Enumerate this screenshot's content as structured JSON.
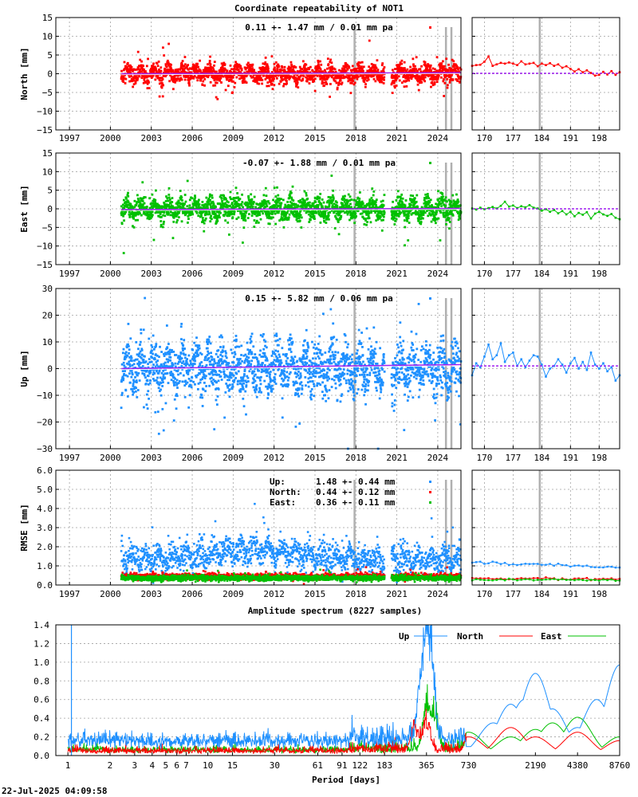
{
  "timestamp": "22-Jul-2025 04:09:58",
  "colors": {
    "north": "#ff0000",
    "east": "#00c000",
    "up": "#1e90ff",
    "trend": "#a020f0",
    "marker": "#b0b0b0"
  },
  "chart_data": [
    {
      "type": "scatter",
      "name": "repeat-north",
      "title": "Coordinate repeatability of NOT1",
      "ylabel": "North [mm]",
      "annotation": "0.11 +- 1.47 mm /  0.01 mm pa",
      "ylim": [
        -15,
        15
      ],
      "yticks": [
        "15",
        "10",
        "5",
        "0",
        "−5",
        "−10",
        "−15"
      ],
      "xlim": [
        1996.0,
        2025.7
      ],
      "xticks": [
        "1997",
        "2000",
        "2003",
        "2006",
        "2009",
        "2012",
        "2015",
        "2018",
        "2021",
        "2024"
      ],
      "data_start": 2000.8,
      "data_end": 2025.7,
      "gap": [
        2020.1,
        2020.6
      ],
      "sigma": 1.47,
      "trend": [
        [
          2000.8,
          0.0
        ],
        [
          2025.7,
          0.3
        ]
      ],
      "marker_years": [
        2017.9,
        2024.6,
        2025.0
      ],
      "zoom": {
        "xlim": [
          167,
          203
        ],
        "xticks": [
          "170",
          "177",
          "184",
          "191",
          "198"
        ],
        "marker_day": 183.5,
        "series": [
          [
            167,
            2.1
          ],
          [
            168,
            2.3
          ],
          [
            169,
            2.4
          ],
          [
            170,
            3.2
          ],
          [
            171,
            4.6
          ],
          [
            172,
            2.1
          ],
          [
            173,
            2.5
          ],
          [
            174,
            2.9
          ],
          [
            175,
            2.7
          ],
          [
            176,
            3.0
          ],
          [
            177,
            2.7
          ],
          [
            178,
            2.3
          ],
          [
            179,
            3.3
          ],
          [
            180,
            2.5
          ],
          [
            181,
            2.7
          ],
          [
            182,
            2.9
          ],
          [
            183,
            2.0
          ],
          [
            184,
            2.7
          ],
          [
            185,
            2.3
          ],
          [
            186,
            2.8
          ],
          [
            187,
            2.1
          ],
          [
            188,
            2.5
          ],
          [
            189,
            1.6
          ],
          [
            190,
            2.0
          ],
          [
            191,
            1.3
          ],
          [
            192,
            0.6
          ],
          [
            193,
            1.2
          ],
          [
            194,
            0.4
          ],
          [
            195,
            0.9
          ],
          [
            196,
            0.2
          ],
          [
            197,
            -0.5
          ],
          [
            198,
            -0.3
          ],
          [
            199,
            0.5
          ],
          [
            200,
            -0.2
          ],
          [
            201,
            0.7
          ],
          [
            202,
            -0.3
          ],
          [
            203,
            0.4
          ]
        ],
        "trend": [
          [
            167,
            0.1
          ],
          [
            203,
            0.1
          ]
        ]
      }
    },
    {
      "type": "scatter",
      "name": "repeat-east",
      "ylabel": "East [mm]",
      "annotation": "-0.07 +- 1.88 mm /  0.01 mm pa",
      "ylim": [
        -15,
        15
      ],
      "yticks": [
        "15",
        "10",
        "5",
        "0",
        "−5",
        "−10",
        "−15"
      ],
      "xlim": [
        1996.0,
        2025.7
      ],
      "xticks": [
        "1997",
        "2000",
        "2003",
        "2006",
        "2009",
        "2012",
        "2015",
        "2018",
        "2021",
        "2024"
      ],
      "data_start": 2000.8,
      "data_end": 2025.7,
      "gap": [
        2020.1,
        2020.6
      ],
      "sigma": 1.88,
      "trend": [
        [
          2000.8,
          -0.2
        ],
        [
          2025.7,
          0.1
        ]
      ],
      "marker_years": [
        2017.9,
        2024.6,
        2025.0
      ],
      "zoom": {
        "xlim": [
          167,
          203
        ],
        "xticks": [
          "170",
          "177",
          "184",
          "191",
          "198"
        ],
        "marker_day": 183.5,
        "series": [
          [
            167,
            0.1
          ],
          [
            168,
            -0.2
          ],
          [
            169,
            0.3
          ],
          [
            170,
            -0.1
          ],
          [
            171,
            0.2
          ],
          [
            172,
            0.5
          ],
          [
            173,
            0.1
          ],
          [
            174,
            0.8
          ],
          [
            175,
            1.9
          ],
          [
            176,
            0.6
          ],
          [
            177,
            0.9
          ],
          [
            178,
            0.2
          ],
          [
            179,
            0.7
          ],
          [
            180,
            0.4
          ],
          [
            181,
            1.0
          ],
          [
            182,
            0.3
          ],
          [
            183,
            0.1
          ],
          [
            184,
            -0.5
          ],
          [
            185,
            -0.1
          ],
          [
            186,
            -0.8
          ],
          [
            187,
            -0.3
          ],
          [
            188,
            -1.2
          ],
          [
            189,
            -0.6
          ],
          [
            190,
            -1.5
          ],
          [
            191,
            -0.8
          ],
          [
            192,
            -2.0
          ],
          [
            193,
            -1.1
          ],
          [
            194,
            -1.6
          ],
          [
            195,
            -0.9
          ],
          [
            196,
            -2.6
          ],
          [
            197,
            -1.3
          ],
          [
            198,
            -0.8
          ],
          [
            199,
            -1.5
          ],
          [
            200,
            -1.9
          ],
          [
            201,
            -1.4
          ],
          [
            202,
            -2.4
          ],
          [
            203,
            -2.8
          ]
        ],
        "trend": [
          [
            167,
            0.0
          ],
          [
            203,
            0.0
          ]
        ]
      }
    },
    {
      "type": "scatter",
      "name": "repeat-up",
      "ylabel": "Up [mm]",
      "annotation": "0.15 +- 5.82 mm /  0.06 mm pa",
      "ylim": [
        -30,
        30
      ],
      "yticks": [
        "30",
        "20",
        "10",
        "0",
        "−10",
        "−20",
        "−30"
      ],
      "xlim": [
        1996.0,
        2025.7
      ],
      "xticks": [
        "1997",
        "2000",
        "2003",
        "2006",
        "2009",
        "2012",
        "2015",
        "2018",
        "2021",
        "2024"
      ],
      "data_start": 2000.8,
      "data_end": 2025.7,
      "gap": [
        2020.1,
        2020.6
      ],
      "sigma": 5.82,
      "trend": [
        [
          2000.8,
          0.0
        ],
        [
          2025.7,
          1.5
        ]
      ],
      "marker_years": [
        2017.9,
        2024.6,
        2025.0
      ],
      "zoom": {
        "xlim": [
          167,
          203
        ],
        "xticks": [
          "170",
          "177",
          "184",
          "191",
          "198"
        ],
        "marker_day": 183.5,
        "series": [
          [
            167,
            -2.5
          ],
          [
            168,
            2.0
          ],
          [
            169,
            0.5
          ],
          [
            170,
            4.5
          ],
          [
            171,
            9.0
          ],
          [
            172,
            3.5
          ],
          [
            173,
            5.0
          ],
          [
            174,
            9.5
          ],
          [
            175,
            2.5
          ],
          [
            176,
            5.0
          ],
          [
            177,
            6.0
          ],
          [
            178,
            1.0
          ],
          [
            179,
            3.5
          ],
          [
            180,
            0.5
          ],
          [
            181,
            3.0
          ],
          [
            182,
            5.0
          ],
          [
            183,
            4.5
          ],
          [
            184,
            1.5
          ],
          [
            185,
            -3.0
          ],
          [
            186,
            0.0
          ],
          [
            187,
            1.0
          ],
          [
            188,
            3.5
          ],
          [
            189,
            1.5
          ],
          [
            190,
            -1.5
          ],
          [
            191,
            2.0
          ],
          [
            192,
            4.0
          ],
          [
            193,
            0.0
          ],
          [
            194,
            2.5
          ],
          [
            195,
            -0.5
          ],
          [
            196,
            6.0
          ],
          [
            197,
            1.5
          ],
          [
            198,
            0.0
          ],
          [
            199,
            2.0
          ],
          [
            200,
            -1.0
          ],
          [
            201,
            0.5
          ],
          [
            202,
            -4.5
          ],
          [
            203,
            -2.5
          ]
        ],
        "trend": [
          [
            167,
            1.0
          ],
          [
            203,
            1.0
          ]
        ]
      }
    },
    {
      "type": "scatter",
      "name": "rmse",
      "ylabel": "RMSE [mm]",
      "ylim": [
        0.0,
        6.0
      ],
      "yticks": [
        "6.0",
        "5.0",
        "4.0",
        "3.0",
        "2.0",
        "1.0",
        "0.0"
      ],
      "xlim": [
        1996.0,
        2025.7
      ],
      "xticks": [
        "1997",
        "2000",
        "2003",
        "2006",
        "2009",
        "2012",
        "2015",
        "2018",
        "2021",
        "2024"
      ],
      "data_start": 2000.8,
      "data_end": 2025.7,
      "gap": [
        2020.1,
        2020.6
      ],
      "marker_years": [
        2017.9,
        2024.6,
        2025.0
      ],
      "legend": [
        {
          "label": "Up:",
          "value": "1.48 +- 0.44 mm",
          "color": "#1e90ff"
        },
        {
          "label": "North:",
          "value": "0.44 +- 0.12 mm",
          "color": "#ff0000"
        },
        {
          "label": "East:",
          "value": "0.36 +- 0.11 mm",
          "color": "#00c000"
        }
      ],
      "series_levels": {
        "up": 1.48,
        "north": 0.44,
        "east": 0.36
      },
      "zoom": {
        "xlim": [
          167,
          203
        ],
        "xticks": [
          "170",
          "177",
          "184",
          "191",
          "198"
        ],
        "marker_day": 183.5,
        "up": [
          1.2,
          0.9
        ],
        "north": [
          0.35,
          0.3
        ],
        "east": [
          0.28,
          0.25
        ]
      }
    },
    {
      "type": "line",
      "name": "spectrum",
      "title": "Amplitude spectrum (8227 samples)",
      "xlabel": "Period [days]",
      "xscale": "log",
      "xlim": [
        1,
        8760
      ],
      "ylim": [
        0.0,
        1.4
      ],
      "yticks": [
        "1.4",
        "1.2",
        "1.0",
        "0.8",
        "0.6",
        "0.4",
        "0.2",
        "0.0"
      ],
      "xticks": [
        {
          "v": 1,
          "l": "1"
        },
        {
          "v": 2,
          "l": "2"
        },
        {
          "v": 3,
          "l": "3"
        },
        {
          "v": 4,
          "l": "4"
        },
        {
          "v": 5,
          "l": "5"
        },
        {
          "v": 6,
          "l": "6"
        },
        {
          "v": 7,
          "l": "7"
        },
        {
          "v": 10,
          "l": "10"
        },
        {
          "v": 15,
          "l": "15"
        },
        {
          "v": 30,
          "l": "30"
        },
        {
          "v": 61,
          "l": "61"
        },
        {
          "v": 91,
          "l": "91"
        },
        {
          "v": 122,
          "l": "122"
        },
        {
          "v": 183,
          "l": "183"
        },
        {
          "v": 365,
          "l": "365"
        },
        {
          "v": 730,
          "l": "730"
        },
        {
          "v": 2190,
          "l": "2190"
        },
        {
          "v": 4380,
          "l": "4380"
        },
        {
          "v": 8760,
          "l": "8760"
        }
      ],
      "legend": [
        {
          "label": "Up",
          "color": "#1e90ff"
        },
        {
          "label": "North",
          "color": "#ff0000"
        },
        {
          "label": "East",
          "color": "#00c000"
        }
      ],
      "up_peaks": [
        [
          365,
          1.2
        ],
        [
          330,
          0.6
        ],
        [
          400,
          0.75
        ],
        [
          1095,
          0.35
        ],
        [
          1460,
          0.55
        ],
        [
          1825,
          0.6
        ],
        [
          2190,
          0.88
        ],
        [
          2900,
          0.5
        ],
        [
          4380,
          0.3
        ],
        [
          6000,
          0.6
        ],
        [
          8760,
          0.97
        ]
      ],
      "north_peaks": [
        [
          365,
          0.4
        ],
        [
          300,
          0.3
        ],
        [
          730,
          0.2
        ],
        [
          1460,
          0.3
        ],
        [
          2190,
          0.2
        ],
        [
          4380,
          0.25
        ],
        [
          8760,
          0.16
        ]
      ],
      "east_peaks": [
        [
          365,
          0.6
        ],
        [
          420,
          0.4
        ],
        [
          730,
          0.25
        ],
        [
          1460,
          0.2
        ],
        [
          2190,
          0.28
        ],
        [
          2900,
          0.35
        ],
        [
          4380,
          0.41
        ],
        [
          8760,
          0.2
        ]
      ]
    }
  ]
}
